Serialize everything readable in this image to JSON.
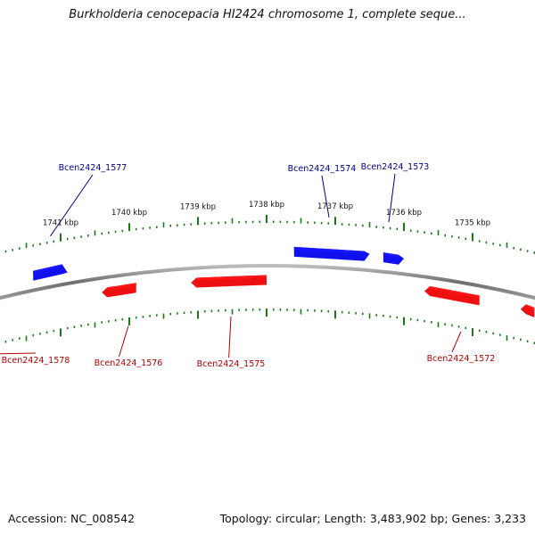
{
  "title": "Burkholderia cenocepacia HI2424 chromosome 1, complete seque...",
  "footer": {
    "accession": "Accession: NC_008542",
    "topology": "Topology: circular; Length: 3,483,902 bp; Genes: 3,233"
  },
  "colors": {
    "forward_gene": "#1010ee",
    "reverse_gene": "#ee1010",
    "forward_label": "#00008b",
    "reverse_label": "#b00000",
    "tick": "#1a7a1a",
    "backbone": "#808080"
  },
  "kbp_labels": [
    {
      "text": "1741 kbp",
      "kbp": 1741
    },
    {
      "text": "1740 kbp",
      "kbp": 1740
    },
    {
      "text": "1739 kbp",
      "kbp": 1739
    },
    {
      "text": "1738 kbp",
      "kbp": 1738
    },
    {
      "text": "1737 kbp",
      "kbp": 1737
    },
    {
      "text": "1736 kbp",
      "kbp": 1736
    },
    {
      "text": "1735 kbp",
      "kbp": 1735
    }
  ],
  "genes": [
    {
      "name": "Bcen2424_1577",
      "strand": "+",
      "start_kbp": 1741.4,
      "end_kbp": 1740.9
    },
    {
      "name": "Bcen2424_1574",
      "strand": "+",
      "start_kbp": 1737.6,
      "end_kbp": 1736.5
    },
    {
      "name": "Bcen2424_1573",
      "strand": "+",
      "start_kbp": 1736.3,
      "end_kbp": 1736.0
    },
    {
      "name": "Bcen2424_1578",
      "strand": "-",
      "start_kbp": 1741.9,
      "end_kbp": 1742.3
    },
    {
      "name": "Bcen2424_1576",
      "strand": "-",
      "start_kbp": 1739.9,
      "end_kbp": 1740.4
    },
    {
      "name": "Bcen2424_1575",
      "strand": "-",
      "start_kbp": 1738.0,
      "end_kbp": 1739.1
    },
    {
      "name": "Bcen2424_1572",
      "strand": "-",
      "start_kbp": 1734.9,
      "end_kbp": 1735.7
    },
    {
      "name": "",
      "strand": "-",
      "start_kbp": 1734.1,
      "end_kbp": 1734.3
    }
  ]
}
